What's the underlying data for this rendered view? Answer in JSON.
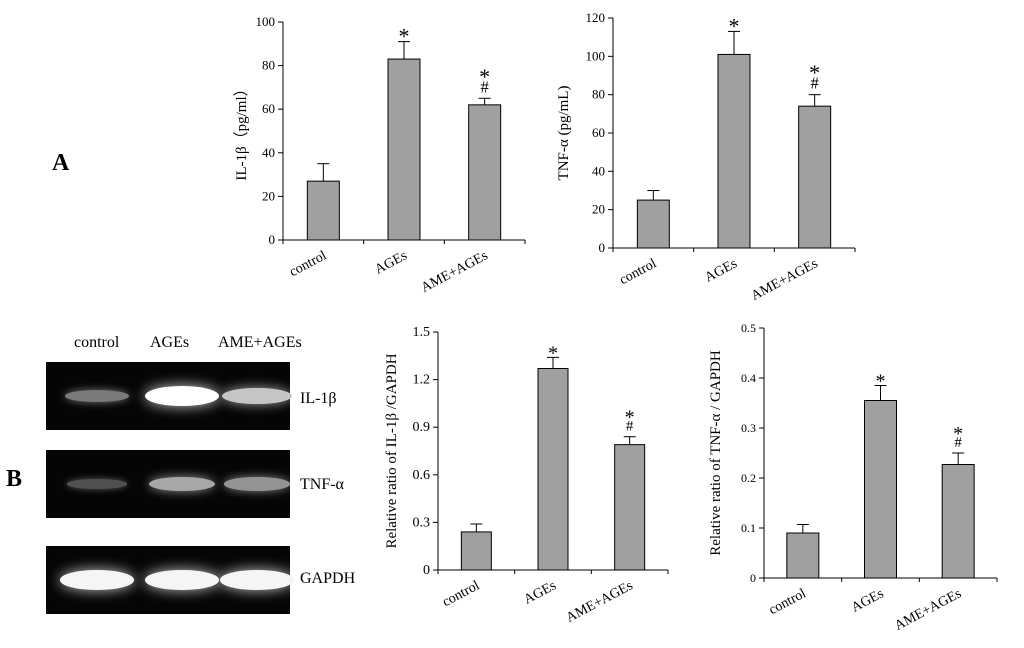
{
  "panels": {
    "a": "A",
    "b": "B"
  },
  "blot": {
    "columns": [
      "control",
      "AGEs",
      "AME+AGEs"
    ],
    "rows": [
      {
        "name": "IL-1β",
        "intensity": [
          0.32,
          1.0,
          0.7
        ]
      },
      {
        "name": "TNF-α",
        "intensity": [
          0.1,
          0.55,
          0.45
        ]
      },
      {
        "name": "GAPDH",
        "intensity": [
          0.95,
          0.95,
          0.95
        ]
      }
    ]
  },
  "chart_data": [
    {
      "type": "bar",
      "categories": [
        "control",
        "AGEs",
        "AME+AGEs"
      ],
      "values": [
        27,
        83,
        62
      ],
      "errors": [
        8,
        8,
        3
      ],
      "annotations": [
        "",
        "*",
        "*\n#"
      ],
      "xlabel": "",
      "ylabel": "IL-1β（pg/ml）",
      "ylim": [
        0,
        100
      ],
      "yticks": [
        "0",
        "20",
        "40",
        "60",
        "80",
        "100"
      ],
      "bar_color": "#a0a0a0"
    },
    {
      "type": "bar",
      "categories": [
        "control",
        "AGEs",
        "AME+AGEs"
      ],
      "values": [
        25,
        101,
        74
      ],
      "errors": [
        5,
        12,
        6
      ],
      "annotations": [
        "",
        "*",
        "*\n#"
      ],
      "xlabel": "",
      "ylabel": "TNF-α (pg/mL)",
      "ylim": [
        0,
        120
      ],
      "yticks": [
        "0",
        "20",
        "40",
        "60",
        "80",
        "100",
        "120"
      ],
      "bar_color": "#a0a0a0"
    },
    {
      "type": "bar",
      "categories": [
        "control",
        "AGEs",
        "AME+AGEs"
      ],
      "values": [
        0.24,
        1.27,
        0.79
      ],
      "errors": [
        0.05,
        0.07,
        0.05
      ],
      "annotations": [
        "",
        "*",
        "*\n#"
      ],
      "xlabel": "",
      "ylabel": "Relative ratio of IL-1β /GAPDH",
      "ylim": [
        0,
        1.5
      ],
      "yticks": [
        "0",
        "0.3",
        "0.6",
        "0.9",
        "1.2",
        "1.5"
      ],
      "bar_color": "#a0a0a0"
    },
    {
      "type": "bar",
      "categories": [
        "control",
        "AGEs",
        "AME+AGEs"
      ],
      "values": [
        0.09,
        0.355,
        0.227
      ],
      "errors": [
        0.017,
        0.03,
        0.023
      ],
      "annotations": [
        "",
        "*",
        "*\n#"
      ],
      "xlabel": "",
      "ylabel": "Relative ratio of  TNF-α / GAPDH",
      "ylim": [
        0,
        0.5
      ],
      "yticks": [
        "0",
        "0.1",
        "0.2",
        "0.3",
        "0.4",
        "0.5"
      ],
      "bar_color": "#a0a0a0"
    }
  ]
}
